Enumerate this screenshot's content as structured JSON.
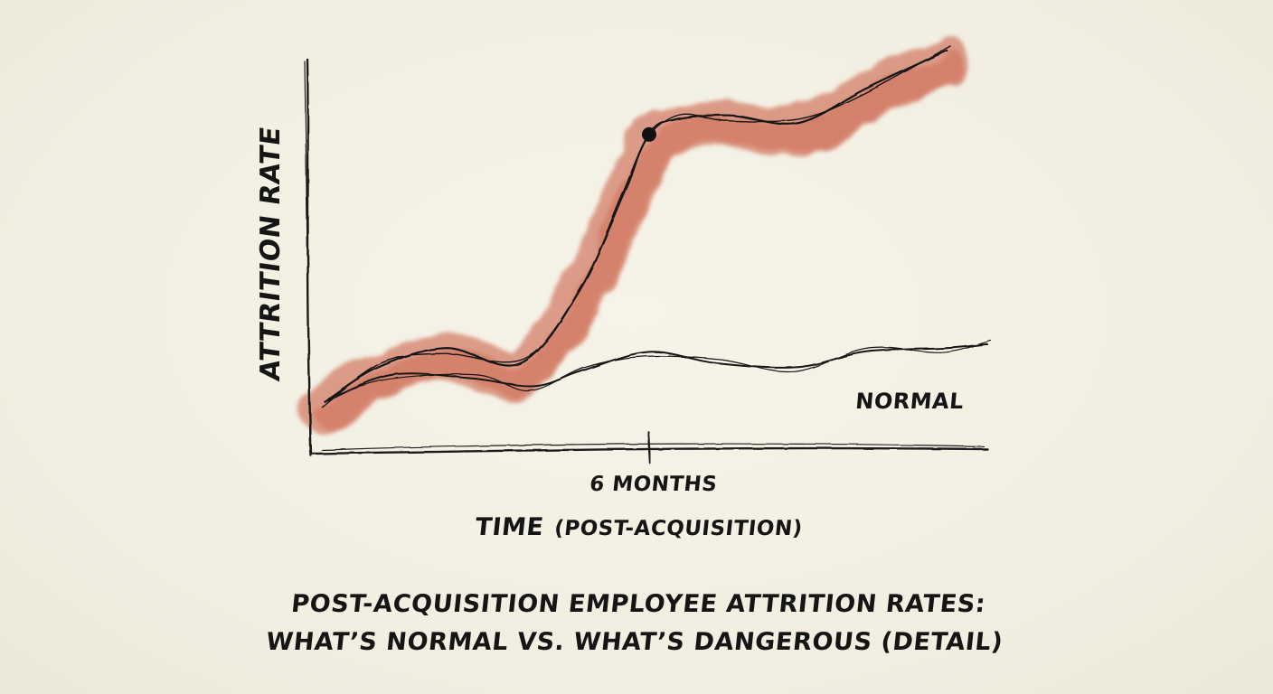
{
  "chart_data": {
    "type": "line",
    "title": [
      "POST-ACQUISITION EMPLOYEE ATTRITION RATES:",
      "WHAT’S NORMAL VS. WHAT’S DANGEROUS (DETAIL)"
    ],
    "ylabel": "ATTRITION RATE",
    "xlabel_main": "TIME",
    "xlabel_paren": "(POST-ACQUISITION)",
    "x_ticks": [
      {
        "x": 0.5,
        "label": "6 MONTHS"
      }
    ],
    "xlim": [
      0,
      1
    ],
    "ylim": [
      0,
      1
    ],
    "series": [
      {
        "name": "",
        "style": "dangerous",
        "color": "#c8553a",
        "x": [
          0.02,
          0.1,
          0.2,
          0.31,
          0.4,
          0.46,
          0.5,
          0.54,
          0.62,
          0.72,
          0.82,
          0.94
        ],
        "y": [
          0.08,
          0.17,
          0.22,
          0.18,
          0.38,
          0.62,
          0.78,
          0.82,
          0.83,
          0.81,
          0.9,
          1.0
        ]
      },
      {
        "name": "NORMAL",
        "style": "normal",
        "x": [
          0.02,
          0.12,
          0.24,
          0.33,
          0.4,
          0.5,
          0.6,
          0.72,
          0.82,
          0.94,
          1.0
        ],
        "y": [
          0.08,
          0.15,
          0.14,
          0.12,
          0.16,
          0.21,
          0.18,
          0.17,
          0.21,
          0.22,
          0.23
        ]
      }
    ],
    "highlight_point": {
      "x": 0.5,
      "y": 0.78,
      "color": "#111111"
    },
    "grid": false,
    "legend": "direct-label"
  }
}
